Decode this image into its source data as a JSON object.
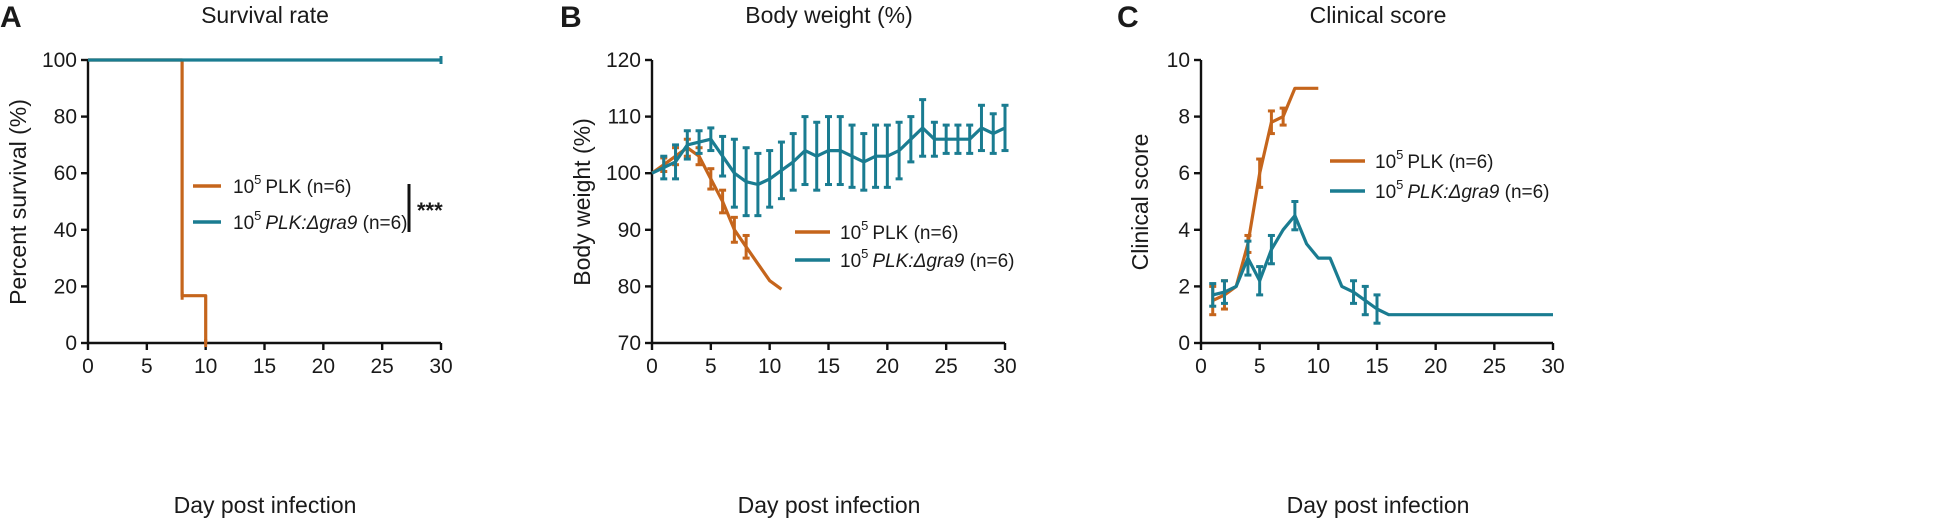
{
  "colors": {
    "plk": "#c5651c",
    "dgra9": "#1a7c91",
    "axis": "#111111"
  },
  "legend_parts": {
    "base": "10",
    "exp": "5",
    "n": " (n=6)",
    "plk": "PLK",
    "dgra9": "PLK:Δgra9"
  },
  "chart_data": [
    {
      "panel": "A",
      "type": "line",
      "style": "step",
      "title": "Survival rate",
      "xlabel": "Day post infection",
      "ylabel": "Percent survival (%)",
      "xlim": [
        0,
        30
      ],
      "ylim": [
        0,
        100
      ],
      "xticks": [
        0,
        5,
        10,
        15,
        20,
        25,
        30
      ],
      "yticks": [
        0,
        20,
        40,
        60,
        80,
        100
      ],
      "legend_position": "center-right",
      "significance": "***",
      "series": [
        {
          "key": "plk",
          "name": "10^5 PLK (n=6)",
          "x": [
            0,
            8,
            8,
            10,
            10
          ],
          "y": [
            100,
            100,
            16.7,
            16.7,
            0
          ]
        },
        {
          "key": "dgra9",
          "name": "10^5 PLK:Δgra9 (n=6)",
          "x": [
            0,
            30
          ],
          "y": [
            100,
            100
          ]
        }
      ]
    },
    {
      "panel": "B",
      "type": "line",
      "title": "Body weight (%)",
      "xlabel": "Day post infection",
      "ylabel": "Body weight (%)",
      "xlim": [
        0,
        30
      ],
      "ylim": [
        70,
        120
      ],
      "xticks": [
        0,
        5,
        10,
        15,
        20,
        25,
        30
      ],
      "yticks": [
        70,
        80,
        90,
        100,
        110,
        120
      ],
      "legend_position": "center-right",
      "series": [
        {
          "key": "plk",
          "name": "10^5 PLK (n=6)",
          "x": [
            0,
            1,
            2,
            3,
            4,
            5,
            6,
            7,
            8,
            9,
            10,
            11
          ],
          "y": [
            100,
            101.5,
            103,
            104.5,
            103,
            99,
            95,
            90,
            87,
            84,
            81,
            79.5
          ],
          "err": [
            0,
            1.2,
            1.5,
            1.5,
            1.5,
            1.8,
            2,
            2.2,
            2,
            0,
            0,
            0
          ]
        },
        {
          "key": "dgra9",
          "name": "10^5 PLK:Δgra9 (n=6)",
          "x": [
            0,
            1,
            2,
            3,
            4,
            5,
            6,
            7,
            8,
            9,
            10,
            11,
            12,
            13,
            14,
            15,
            16,
            17,
            18,
            19,
            20,
            21,
            22,
            23,
            24,
            25,
            26,
            27,
            28,
            29,
            30
          ],
          "y": [
            100,
            101,
            102,
            105,
            105.5,
            106,
            103,
            100,
            98.5,
            98,
            99,
            100.5,
            102,
            104,
            103,
            104,
            104,
            103,
            102,
            103,
            103,
            104,
            106,
            108,
            106,
            106,
            106,
            106,
            108,
            107,
            108
          ],
          "err": [
            0,
            2,
            3,
            2.5,
            2,
            2,
            3.5,
            6,
            6,
            5.5,
            5,
            5,
            5,
            6,
            6,
            6,
            6,
            5.5,
            5,
            5.5,
            5.5,
            5,
            4,
            5,
            3,
            2.5,
            2.5,
            2.5,
            4,
            3.5,
            4
          ]
        }
      ]
    },
    {
      "panel": "C",
      "type": "line",
      "title": "Clinical score",
      "xlabel": "Day post infection",
      "ylabel": "Clinical score",
      "xlim": [
        0,
        30
      ],
      "ylim": [
        0,
        10
      ],
      "xticks": [
        0,
        5,
        10,
        15,
        20,
        25,
        30
      ],
      "yticks": [
        0,
        2,
        4,
        6,
        8,
        10
      ],
      "legend_position": "top-right",
      "series": [
        {
          "key": "plk",
          "name": "10^5 PLK (n=6)",
          "x": [
            1,
            2,
            3,
            4,
            5,
            6,
            7,
            8,
            9,
            10
          ],
          "y": [
            1.5,
            1.7,
            2,
            3.5,
            6,
            7.8,
            8,
            9,
            9,
            9
          ],
          "err": [
            0.5,
            0.5,
            0,
            0.3,
            0.5,
            0.4,
            0.3,
            0,
            0,
            0
          ]
        },
        {
          "key": "dgra9",
          "name": "10^5 PLK:Δgra9 (n=6)",
          "x": [
            1,
            2,
            3,
            4,
            5,
            6,
            7,
            8,
            9,
            10,
            11,
            12,
            13,
            14,
            15,
            16,
            17,
            18,
            19,
            20,
            21,
            22,
            23,
            24,
            25,
            26,
            27,
            28,
            29,
            30
          ],
          "y": [
            1.7,
            1.8,
            2,
            3,
            2.2,
            3.3,
            4,
            4.5,
            3.5,
            3,
            3,
            2,
            1.8,
            1.5,
            1.2,
            1,
            1,
            1,
            1,
            1,
            1,
            1,
            1,
            1,
            1,
            1,
            1,
            1,
            1,
            1
          ],
          "err": [
            0.4,
            0.4,
            0,
            0.6,
            0.5,
            0.5,
            0,
            0.5,
            0,
            0,
            0,
            0,
            0.4,
            0.5,
            0.5,
            0,
            0,
            0,
            0,
            0,
            0,
            0,
            0,
            0,
            0,
            0,
            0,
            0,
            0,
            0
          ]
        }
      ]
    }
  ]
}
